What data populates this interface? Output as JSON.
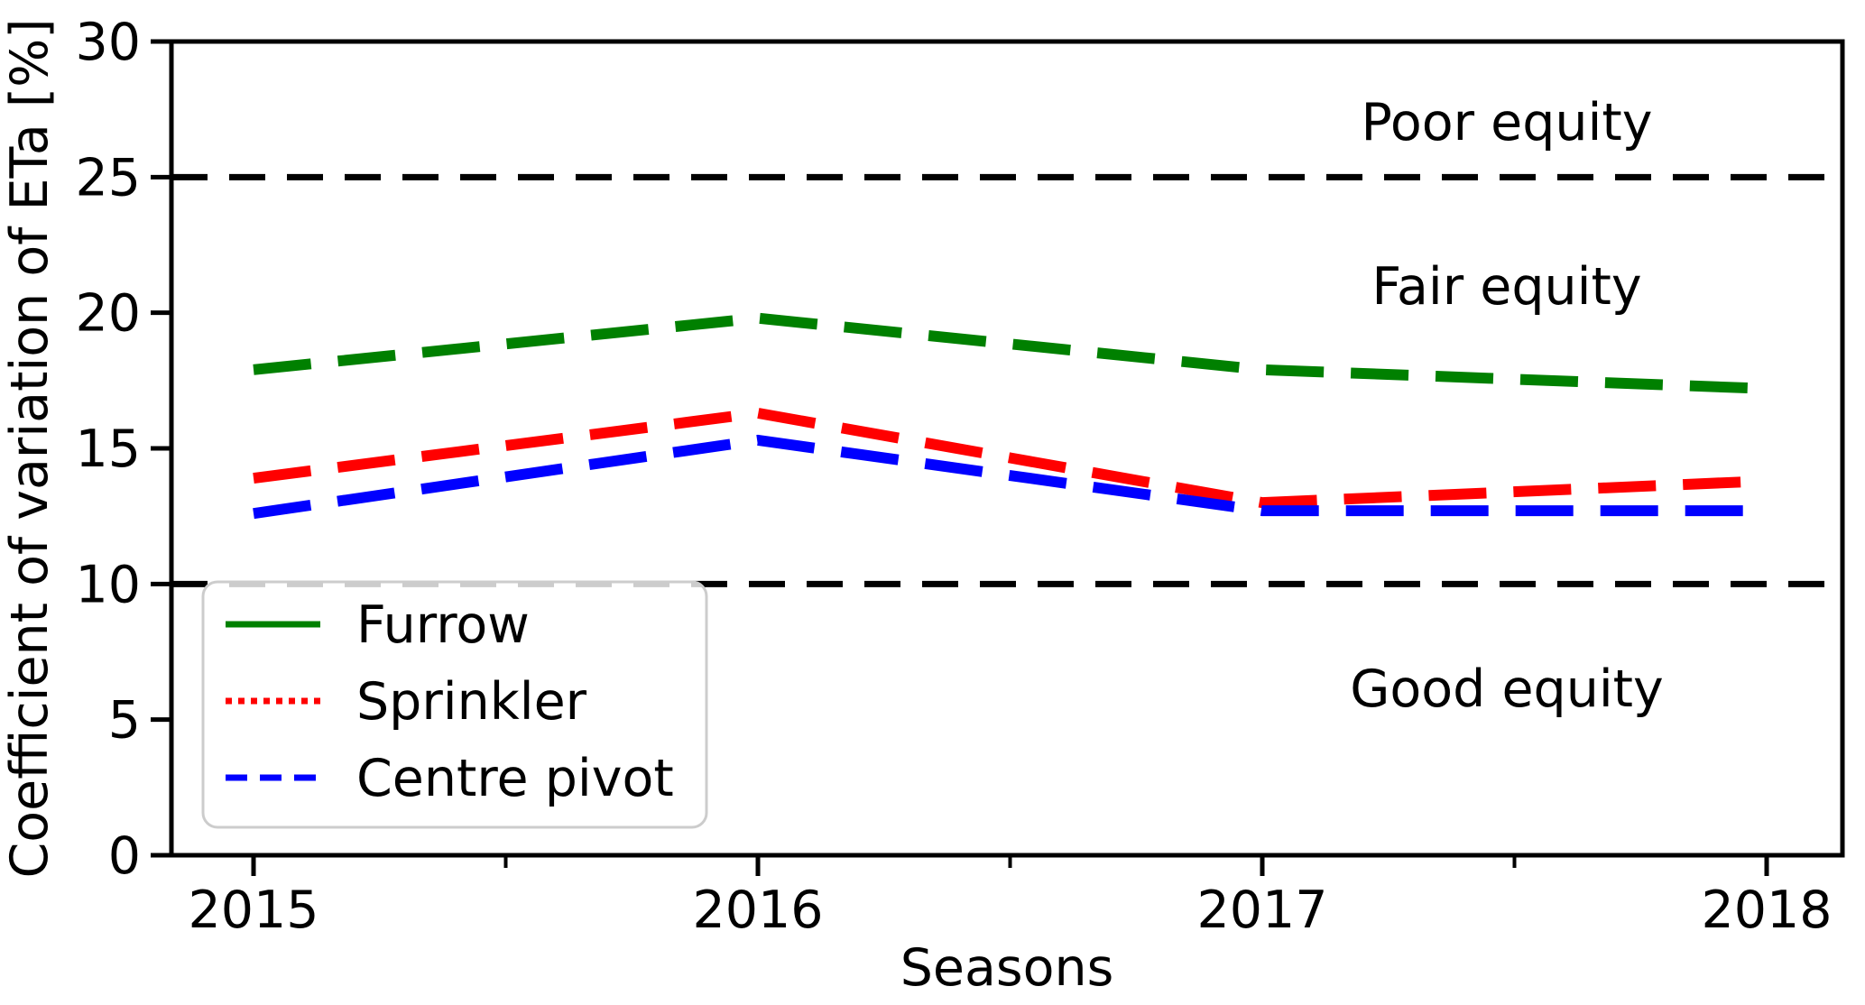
{
  "figure": {
    "background": "#ffffff"
  },
  "chart_data": {
    "type": "line",
    "title": "",
    "xlabel": "Seasons",
    "ylabel": "Coefficient of variation of ETa [%]",
    "x": [
      2015,
      2016,
      2017,
      2018
    ],
    "x_tick_labels": [
      "2015",
      "2016",
      "2017",
      "2018"
    ],
    "y_ticks": [
      0,
      5,
      10,
      15,
      20,
      25,
      30
    ],
    "y_tick_labels": [
      "0",
      "5",
      "10",
      "15",
      "20",
      "25",
      "30"
    ],
    "ylim": [
      0,
      30
    ],
    "grid": false,
    "legend_position": "lower-left",
    "series": [
      {
        "name": "Furrow",
        "color": "#008000",
        "values": [
          17.9,
          19.8,
          17.9,
          17.2
        ],
        "plot_linestyle": "dashed",
        "legend_linestyle": "solid"
      },
      {
        "name": "Sprinkler",
        "color": "#ff0000",
        "values": [
          13.9,
          16.3,
          13.0,
          13.8
        ],
        "plot_linestyle": "dashed",
        "legend_linestyle": "dotted"
      },
      {
        "name": "Centre pivot",
        "color": "#0000ff",
        "values": [
          12.6,
          15.3,
          12.7,
          12.7
        ],
        "plot_linestyle": "dashed",
        "legend_linestyle": "dashed"
      }
    ],
    "threshold_lines": [
      {
        "value": 25,
        "color": "#000000",
        "style": "dashed"
      },
      {
        "value": 10,
        "color": "#000000",
        "style": "dashed"
      }
    ],
    "annotations": [
      {
        "text": "Poor equity",
        "x": 2017.5,
        "y": 27.0
      },
      {
        "text": "Fair equity",
        "x": 2017.5,
        "y": 21.0
      },
      {
        "text": "Good equity",
        "x": 2017.5,
        "y": 6.1
      }
    ]
  }
}
